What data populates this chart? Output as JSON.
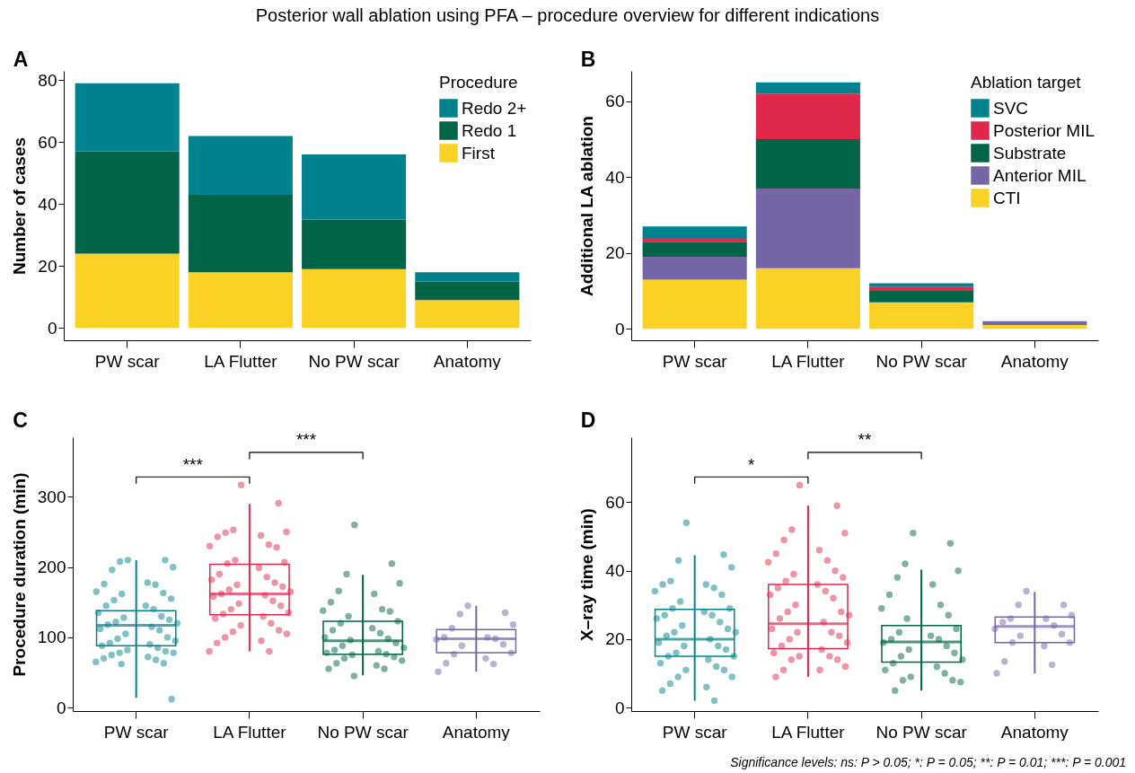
{
  "chart_data": [
    {
      "type": "bar",
      "title": "A",
      "stacked": true,
      "categories": [
        "PW scar",
        "LA Flutter",
        "No PW scar",
        "Anatomy"
      ],
      "ylabel": "Number of cases",
      "legend_title": "Procedure",
      "legend": "top right",
      "ylim": [
        -4,
        83
      ],
      "yticks": [
        0,
        20,
        40,
        60,
        80
      ],
      "annotations": [
        "Posterior wall ablation using PFA – procedure overview for different indications"
      ],
      "series": [
        {
          "name": "First",
          "color": "#fad225",
          "values": [
            24,
            18,
            19,
            9
          ]
        },
        {
          "name": "Redo 1",
          "color": "#006446",
          "values": [
            33,
            25,
            16,
            6
          ]
        },
        {
          "name": "Redo 2+",
          "color": "#00838f",
          "values": [
            22,
            19,
            21,
            3
          ]
        }
      ]
    },
    {
      "type": "bar",
      "title": "B",
      "stacked": true,
      "categories": [
        "PW scar",
        "LA Flutter",
        "No PW scar",
        "Anatomy"
      ],
      "ylabel": "Additional LA ablation",
      "legend_title": "Ablation target",
      "legend": "top right",
      "ylim": [
        -3,
        68
      ],
      "yticks": [
        0,
        20,
        40,
        60
      ],
      "series": [
        {
          "name": "CTI",
          "color": "#fad225",
          "values": [
            13,
            16,
            7,
            1
          ]
        },
        {
          "name": "Anterior MIL",
          "color": "#7566a8",
          "values": [
            6,
            21,
            0,
            1
          ]
        },
        {
          "name": "Substrate",
          "color": "#006446",
          "values": [
            4,
            13,
            3,
            0
          ]
        },
        {
          "name": "Posterior MIL",
          "color": "#e0294a",
          "values": [
            1,
            12,
            1,
            0
          ]
        },
        {
          "name": "SVC",
          "color": "#00838f",
          "values": [
            3,
            3,
            1,
            0
          ]
        }
      ]
    },
    {
      "type": "box",
      "title": "C",
      "categories": [
        "PW scar",
        "LA Flutter",
        "No PW scar",
        "Anatomy"
      ],
      "ylabel": "Procedure duration (min)",
      "ylim": [
        -5,
        385
      ],
      "yticks": [
        0,
        100,
        200,
        300
      ],
      "annotations": [
        "***",
        "***"
      ],
      "series": [
        {
          "type": "box",
          "colors": [
            "#00838f",
            "#e0294a",
            "#006446",
            "#7566a8"
          ],
          "boxes": [
            {
              "low": 14,
              "q1": 88,
              "median": 117,
              "q3": 138,
              "high": 210
            },
            {
              "low": 80,
              "q1": 132,
              "median": 162,
              "q3": 204,
              "high": 290
            },
            {
              "low": 46,
              "q1": 76,
              "median": 95,
              "q3": 123,
              "high": 189
            },
            {
              "low": 51,
              "q1": 78,
              "median": 98,
              "q3": 111,
              "high": 145
            }
          ]
        },
        {
          "type": "scatter",
          "color": "#00838f",
          "x": [
            "PW scar",
            "PW scar",
            "PW scar",
            "PW scar",
            "PW scar",
            "PW scar",
            "PW scar",
            "PW scar",
            "PW scar",
            "PW scar",
            "PW scar",
            "PW scar",
            "PW scar",
            "PW scar",
            "PW scar",
            "PW scar",
            "PW scar",
            "PW scar",
            "PW scar",
            "PW scar",
            "PW scar",
            "PW scar",
            "PW scar",
            "PW scar",
            "PW scar",
            "PW scar",
            "PW scar",
            "PW scar",
            "PW scar",
            "PW scar",
            "PW scar",
            "PW scar",
            "PW scar",
            "PW scar",
            "PW scar",
            "PW scar",
            "PW scar",
            "PW scar",
            "PW scar",
            "PW scar",
            "PW scar",
            "PW scar",
            "PW scar",
            "PW scar",
            "PW scar",
            "PW scar"
          ],
          "values": [
            210,
            210,
            208,
            200,
            196,
            178,
            176,
            175,
            165,
            163,
            162,
            155,
            153,
            145,
            145,
            140,
            135,
            130,
            128,
            125,
            122,
            120,
            118,
            115,
            112,
            110,
            105,
            100,
            98,
            95,
            92,
            90,
            88,
            85,
            82,
            80,
            78,
            78,
            75,
            72,
            70,
            68,
            65,
            63,
            62,
            12
          ]
        },
        {
          "type": "scatter",
          "color": "#e0294a",
          "x": [
            "LA Flutter",
            "LA Flutter",
            "LA Flutter",
            "LA Flutter",
            "LA Flutter",
            "LA Flutter",
            "LA Flutter",
            "LA Flutter",
            "LA Flutter",
            "LA Flutter",
            "LA Flutter",
            "LA Flutter",
            "LA Flutter",
            "LA Flutter",
            "LA Flutter",
            "LA Flutter",
            "LA Flutter",
            "LA Flutter",
            "LA Flutter",
            "LA Flutter",
            "LA Flutter",
            "LA Flutter",
            "LA Flutter",
            "LA Flutter",
            "LA Flutter",
            "LA Flutter",
            "LA Flutter",
            "LA Flutter",
            "LA Flutter",
            "LA Flutter",
            "LA Flutter",
            "LA Flutter",
            "LA Flutter",
            "LA Flutter",
            "LA Flutter",
            "LA Flutter",
            "LA Flutter",
            "LA Flutter",
            "LA Flutter",
            "LA Flutter",
            "LA Flutter",
            "LA Flutter",
            "LA Flutter"
          ],
          "values": [
            317,
            291,
            253,
            250,
            249,
            245,
            243,
            232,
            230,
            228,
            210,
            207,
            205,
            199,
            190,
            186,
            182,
            178,
            175,
            172,
            168,
            165,
            162,
            160,
            158,
            152,
            148,
            145,
            140,
            135,
            133,
            130,
            127,
            120,
            117,
            110,
            108,
            105,
            100,
            95,
            92,
            80,
            80
          ]
        },
        {
          "type": "scatter",
          "color": "#006446",
          "x": [
            "No PW scar",
            "No PW scar",
            "No PW scar",
            "No PW scar",
            "No PW scar",
            "No PW scar",
            "No PW scar",
            "No PW scar",
            "No PW scar",
            "No PW scar",
            "No PW scar",
            "No PW scar",
            "No PW scar",
            "No PW scar",
            "No PW scar",
            "No PW scar",
            "No PW scar",
            "No PW scar",
            "No PW scar",
            "No PW scar",
            "No PW scar",
            "No PW scar",
            "No PW scar",
            "No PW scar",
            "No PW scar",
            "No PW scar",
            "No PW scar",
            "No PW scar",
            "No PW scar",
            "No PW scar",
            "No PW scar",
            "No PW scar",
            "No PW scar",
            "No PW scar",
            "No PW scar"
          ],
          "values": [
            260,
            205,
            190,
            177,
            166,
            162,
            150,
            140,
            138,
            137,
            130,
            123,
            120,
            113,
            110,
            106,
            100,
            98,
            96,
            92,
            88,
            85,
            82,
            80,
            78,
            76,
            75,
            72,
            70,
            67,
            63,
            60,
            55,
            55,
            45
          ]
        },
        {
          "type": "scatter",
          "color": "#7566a8",
          "x": [
            "Anatomy",
            "Anatomy",
            "Anatomy",
            "Anatomy",
            "Anatomy",
            "Anatomy",
            "Anatomy",
            "Anatomy",
            "Anatomy",
            "Anatomy",
            "Anatomy",
            "Anatomy",
            "Anatomy",
            "Anatomy",
            "Anatomy",
            "Anatomy",
            "Anatomy"
          ],
          "values": [
            145,
            135,
            133,
            118,
            113,
            100,
            100,
            98,
            97,
            90,
            88,
            78,
            76,
            70,
            63,
            62,
            51
          ]
        }
      ]
    },
    {
      "type": "box",
      "title": "D",
      "categories": [
        "PW scar",
        "LA Flutter",
        "No PW scar",
        "Anatomy"
      ],
      "ylabel": "X–ray time (min)",
      "ylim": [
        -1,
        79
      ],
      "yticks": [
        0,
        20,
        40,
        60
      ],
      "annotations": [
        "*",
        "**",
        "Significance levels: ns: P > 0.05;  *: P = 0.05; **: P = 0.01; ***: P = 0.001"
      ],
      "series": [
        {
          "type": "box",
          "colors": [
            "#00838f",
            "#e0294a",
            "#006446",
            "#7566a8"
          ],
          "boxes": [
            {
              "low": 2,
              "q1": 15,
              "median": 20,
              "q3": 28.7,
              "high": 44.5
            },
            {
              "low": 9,
              "q1": 17.2,
              "median": 24.5,
              "q3": 36,
              "high": 59
            },
            {
              "low": 5,
              "q1": 13.3,
              "median": 19.2,
              "q3": 24,
              "high": 40.3
            },
            {
              "low": 10,
              "q1": 19,
              "median": 23.7,
              "q3": 26.5,
              "high": 33.8
            }
          ]
        },
        {
          "type": "scatter",
          "color": "#00838f",
          "x": [
            "PW scar",
            "PW scar",
            "PW scar",
            "PW scar",
            "PW scar",
            "PW scar",
            "PW scar",
            "PW scar",
            "PW scar",
            "PW scar",
            "PW scar",
            "PW scar",
            "PW scar",
            "PW scar",
            "PW scar",
            "PW scar",
            "PW scar",
            "PW scar",
            "PW scar",
            "PW scar",
            "PW scar",
            "PW scar",
            "PW scar",
            "PW scar",
            "PW scar",
            "PW scar",
            "PW scar",
            "PW scar",
            "PW scar",
            "PW scar",
            "PW scar",
            "PW scar",
            "PW scar",
            "PW scar",
            "PW scar",
            "PW scar",
            "PW scar",
            "PW scar",
            "PW scar",
            "PW scar",
            "PW scar",
            "PW scar"
          ],
          "values": [
            54,
            44.7,
            43,
            41,
            37,
            36,
            36,
            35,
            34,
            33,
            31,
            29,
            29,
            28,
            27,
            27,
            26,
            25,
            24,
            23,
            22,
            22,
            21,
            20,
            19,
            18,
            18,
            17,
            16,
            15,
            15,
            14,
            13,
            12,
            11,
            11,
            9,
            9,
            7,
            6,
            5,
            2
          ]
        },
        {
          "type": "scatter",
          "color": "#e0294a",
          "x": [
            "LA Flutter",
            "LA Flutter",
            "LA Flutter",
            "LA Flutter",
            "LA Flutter",
            "LA Flutter",
            "LA Flutter",
            "LA Flutter",
            "LA Flutter",
            "LA Flutter",
            "LA Flutter",
            "LA Flutter",
            "LA Flutter",
            "LA Flutter",
            "LA Flutter",
            "LA Flutter",
            "LA Flutter",
            "LA Flutter",
            "LA Flutter",
            "LA Flutter",
            "LA Flutter",
            "LA Flutter",
            "LA Flutter",
            "LA Flutter",
            "LA Flutter",
            "LA Flutter",
            "LA Flutter",
            "LA Flutter",
            "LA Flutter",
            "LA Flutter",
            "LA Flutter",
            "LA Flutter",
            "LA Flutter",
            "LA Flutter",
            "LA Flutter",
            "LA Flutter",
            "LA Flutter",
            "LA Flutter",
            "LA Flutter",
            "LA Flutter",
            "LA Flutter"
          ],
          "values": [
            65,
            59,
            52,
            51,
            49,
            46,
            45,
            43,
            42.5,
            40,
            39,
            38,
            37,
            36,
            35,
            34,
            33,
            32,
            30,
            28,
            28,
            27,
            26,
            25,
            23,
            22,
            22,
            21,
            20,
            19,
            18,
            17,
            16,
            15,
            15,
            14,
            14,
            12,
            11,
            11,
            9
          ]
        },
        {
          "type": "scatter",
          "color": "#006446",
          "x": [
            "No PW scar",
            "No PW scar",
            "No PW scar",
            "No PW scar",
            "No PW scar",
            "No PW scar",
            "No PW scar",
            "No PW scar",
            "No PW scar",
            "No PW scar",
            "No PW scar",
            "No PW scar",
            "No PW scar",
            "No PW scar",
            "No PW scar",
            "No PW scar",
            "No PW scar",
            "No PW scar",
            "No PW scar",
            "No PW scar",
            "No PW scar",
            "No PW scar",
            "No PW scar",
            "No PW scar",
            "No PW scar",
            "No PW scar",
            "No PW scar",
            "No PW scar",
            "No PW scar",
            "No PW scar",
            "No PW scar"
          ],
          "values": [
            51,
            48,
            42,
            40,
            38,
            36,
            33,
            30,
            29,
            27,
            26,
            23,
            22,
            21,
            20,
            20,
            19,
            18,
            17,
            16,
            15,
            14,
            13,
            12,
            11,
            10,
            9,
            8,
            8,
            7.5,
            5
          ]
        },
        {
          "type": "scatter",
          "color": "#7566a8",
          "x": [
            "Anatomy",
            "Anatomy",
            "Anatomy",
            "Anatomy",
            "Anatomy",
            "Anatomy",
            "Anatomy",
            "Anatomy",
            "Anatomy",
            "Anatomy",
            "Anatomy",
            "Anatomy",
            "Anatomy",
            "Anatomy",
            "Anatomy",
            "Anatomy",
            "Anatomy"
          ],
          "values": [
            34,
            30,
            30,
            27,
            26,
            26,
            25,
            24,
            23,
            21.5,
            21,
            19,
            19,
            18,
            13.5,
            12.5,
            10
          ]
        }
      ]
    }
  ]
}
